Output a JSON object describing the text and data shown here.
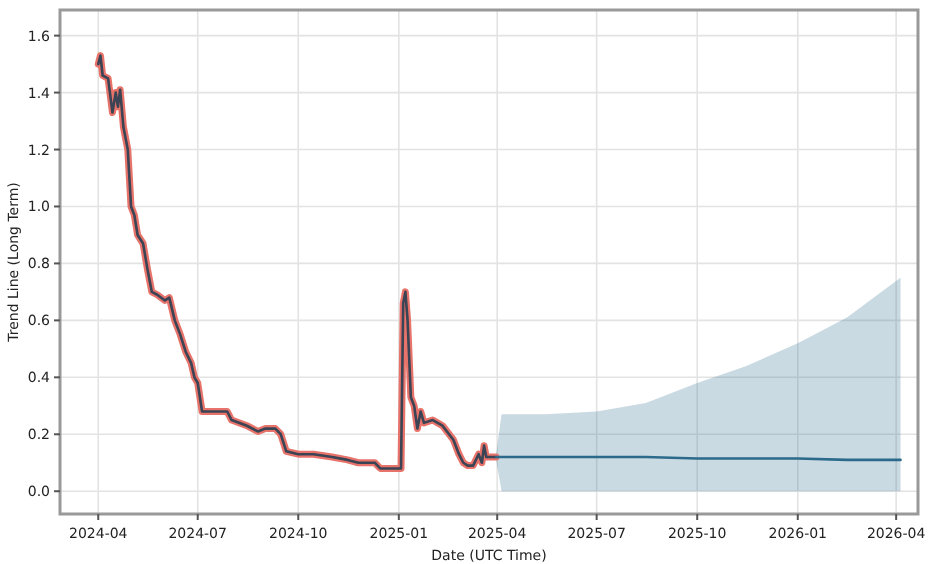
{
  "chart_data": {
    "type": "line",
    "xlabel": "Date (UTC Time)",
    "ylabel": "Trend Line (Long Term)",
    "xlim": [
      "2024-02-26",
      "2026-04-21"
    ],
    "ylim": [
      -0.08,
      1.69
    ],
    "xticks": [
      {
        "value": "2024-04",
        "label": "2024-04"
      },
      {
        "value": "2024-07",
        "label": "2024-07"
      },
      {
        "value": "2024-10",
        "label": "2024-10"
      },
      {
        "value": "2025-01",
        "label": "2025-01"
      },
      {
        "value": "2025-04",
        "label": "2025-04"
      },
      {
        "value": "2025-07",
        "label": "2025-07"
      },
      {
        "value": "2025-10",
        "label": "2025-10"
      },
      {
        "value": "2026-01",
        "label": "2026-01"
      },
      {
        "value": "2026-04",
        "label": "2026-04"
      }
    ],
    "yticks": [
      {
        "value": 0,
        "label": "0.0"
      },
      {
        "value": 0.2,
        "label": "0.2"
      },
      {
        "value": 0.4,
        "label": "0.4"
      },
      {
        "value": 0.6,
        "label": "0.6"
      },
      {
        "value": 0.8,
        "label": "0.8"
      },
      {
        "value": 1,
        "label": "1.0"
      },
      {
        "value": 1.2,
        "label": "1.2"
      },
      {
        "value": 1.4,
        "label": "1.4"
      },
      {
        "value": 1.6,
        "label": "1.6"
      }
    ],
    "grid": true,
    "line_style": "solid",
    "marker": "none",
    "series": [
      {
        "color": "#e8736a",
        "x": [
          "2024-04-01",
          "2024-04-03",
          "2024-04-05",
          "2024-04-10",
          "2024-04-14",
          "2024-04-17",
          "2024-04-19",
          "2024-04-21",
          "2024-04-24",
          "2024-04-28",
          "2024-05-01",
          "2024-05-04",
          "2024-05-07",
          "2024-05-12",
          "2024-05-16",
          "2024-05-20",
          "2024-05-25",
          "2024-06-01",
          "2024-06-05",
          "2024-06-10",
          "2024-06-15",
          "2024-06-20",
          "2024-06-25",
          "2024-06-28",
          "2024-07-01",
          "2024-07-05",
          "2024-07-15",
          "2024-07-28",
          "2024-08-01",
          "2024-08-15",
          "2024-08-25",
          "2024-09-01",
          "2024-09-10",
          "2024-09-15",
          "2024-09-20",
          "2024-10-01",
          "2024-10-15",
          "2024-11-01",
          "2024-11-15",
          "2024-11-25",
          "2024-12-10",
          "2024-12-15",
          "2024-12-30",
          "2025-01-03",
          "2025-01-05",
          "2025-01-07",
          "2025-01-09",
          "2025-01-12",
          "2025-01-15",
          "2025-01-18",
          "2025-01-21",
          "2025-01-24",
          "2025-02-01",
          "2025-02-10",
          "2025-02-20",
          "2025-02-25",
          "2025-03-01",
          "2025-03-05",
          "2025-03-10",
          "2025-03-15",
          "2025-03-18",
          "2025-03-20",
          "2025-03-22",
          "2025-03-31"
        ],
        "values": [
          1.5,
          1.53,
          1.46,
          1.45,
          1.33,
          1.4,
          1.35,
          1.41,
          1.28,
          1.2,
          1.0,
          0.97,
          0.9,
          0.87,
          0.78,
          0.7,
          0.69,
          0.67,
          0.68,
          0.6,
          0.55,
          0.49,
          0.45,
          0.4,
          0.38,
          0.28,
          0.28,
          0.28,
          0.25,
          0.23,
          0.21,
          0.22,
          0.22,
          0.2,
          0.14,
          0.13,
          0.13,
          0.12,
          0.11,
          0.1,
          0.1,
          0.08,
          0.08,
          0.08,
          0.66,
          0.7,
          0.6,
          0.33,
          0.3,
          0.22,
          0.28,
          0.24,
          0.25,
          0.23,
          0.18,
          0.13,
          0.1,
          0.09,
          0.09,
          0.13,
          0.1,
          0.16,
          0.12,
          0.12
        ]
      },
      {
        "color": "#3a4454",
        "x": [
          "2024-04-01",
          "2024-04-03",
          "2024-04-05",
          "2024-04-10",
          "2024-04-14",
          "2024-04-17",
          "2024-04-19",
          "2024-04-21",
          "2024-04-24",
          "2024-04-28",
          "2024-05-01",
          "2024-05-04",
          "2024-05-07",
          "2024-05-12",
          "2024-05-16",
          "2024-05-20",
          "2024-05-25",
          "2024-06-01",
          "2024-06-05",
          "2024-06-10",
          "2024-06-15",
          "2024-06-20",
          "2024-06-25",
          "2024-06-28",
          "2024-07-01",
          "2024-07-05",
          "2024-07-15",
          "2024-07-28",
          "2024-08-01",
          "2024-08-15",
          "2024-08-25",
          "2024-09-01",
          "2024-09-10",
          "2024-09-15",
          "2024-09-20",
          "2024-10-01",
          "2024-10-15",
          "2024-11-01",
          "2024-11-15",
          "2024-11-25",
          "2024-12-10",
          "2024-12-15",
          "2024-12-30",
          "2025-01-03",
          "2025-01-05",
          "2025-01-07",
          "2025-01-09",
          "2025-01-12",
          "2025-01-15",
          "2025-01-18",
          "2025-01-21",
          "2025-01-24",
          "2025-02-01",
          "2025-02-10",
          "2025-02-20",
          "2025-02-25",
          "2025-03-01",
          "2025-03-05",
          "2025-03-10",
          "2025-03-15",
          "2025-03-18",
          "2025-03-20",
          "2025-03-22",
          "2025-03-31"
        ],
        "values": [
          1.5,
          1.53,
          1.46,
          1.45,
          1.33,
          1.4,
          1.35,
          1.41,
          1.28,
          1.2,
          1.0,
          0.97,
          0.9,
          0.87,
          0.78,
          0.7,
          0.69,
          0.67,
          0.68,
          0.6,
          0.55,
          0.49,
          0.45,
          0.4,
          0.38,
          0.28,
          0.28,
          0.28,
          0.25,
          0.23,
          0.21,
          0.22,
          0.22,
          0.2,
          0.14,
          0.13,
          0.13,
          0.12,
          0.11,
          0.1,
          0.1,
          0.08,
          0.08,
          0.08,
          0.66,
          0.7,
          0.6,
          0.33,
          0.3,
          0.22,
          0.28,
          0.24,
          0.25,
          0.23,
          0.18,
          0.13,
          0.1,
          0.09,
          0.09,
          0.13,
          0.1,
          0.16,
          0.12,
          0.12
        ]
      },
      {
        "color": "#2b6a8a",
        "x": [
          "2025-03-31",
          "2025-04-05",
          "2025-05-15",
          "2025-07-01",
          "2025-08-15",
          "2025-10-01",
          "2025-11-15",
          "2026-01-01",
          "2026-02-15",
          "2026-04-05"
        ],
        "values": [
          0.12,
          0.12,
          0.12,
          0.12,
          0.12,
          0.115,
          0.115,
          0.115,
          0.11,
          0.11
        ],
        "lower": [
          0.11,
          0,
          0,
          0,
          0,
          0,
          0,
          0,
          0,
          0
        ],
        "upper": [
          0.13,
          0.27,
          0.27,
          0.28,
          0.31,
          0.38,
          0.44,
          0.52,
          0.61,
          0.75
        ]
      }
    ]
  }
}
